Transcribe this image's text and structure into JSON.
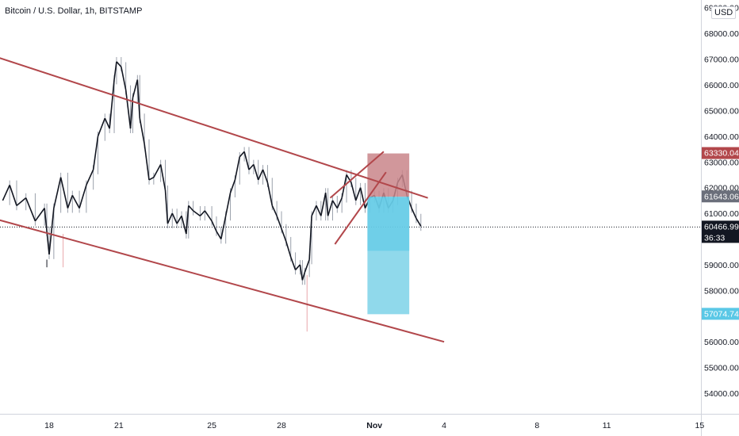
{
  "header": {
    "title": "Bitcoin / U.S. Dollar, 1h, BITSTAMP",
    "currency": "USD"
  },
  "chart_data": {
    "type": "candlestick",
    "title": "Bitcoin / U.S. Dollar, 1h, BITSTAMP",
    "ylabel": "",
    "xlabel": "",
    "ylim": [
      53200,
      69300
    ],
    "y_ticks": [
      {
        "value": 54000,
        "label": "54000.00"
      },
      {
        "value": 55000,
        "label": "55000.00"
      },
      {
        "value": 56000,
        "label": "56000.00"
      },
      {
        "value": 57000,
        "label": "57000.00"
      },
      {
        "value": 58000,
        "label": "58000.00"
      },
      {
        "value": 59000,
        "label": "59000.00"
      },
      {
        "value": 61000,
        "label": "61000.00"
      },
      {
        "value": 62000,
        "label": "62000.00"
      },
      {
        "value": 63000,
        "label": "63000.00"
      },
      {
        "value": 64000,
        "label": "64000.00"
      },
      {
        "value": 65000,
        "label": "65000.00"
      },
      {
        "value": 66000,
        "label": "66000.00"
      },
      {
        "value": 67000,
        "label": "67000.00"
      },
      {
        "value": 68000,
        "label": "68000.00"
      },
      {
        "value": 69000,
        "label": "69000.00"
      }
    ],
    "x_ticks": [
      {
        "day": 18,
        "label": "18",
        "bold": false
      },
      {
        "day": 21,
        "label": "21",
        "bold": false
      },
      {
        "day": 25,
        "label": "25",
        "bold": false
      },
      {
        "day": 28,
        "label": "28",
        "bold": false
      },
      {
        "day": 32,
        "label": "Nov",
        "bold": true
      },
      {
        "day": 35,
        "label": "4",
        "bold": false
      },
      {
        "day": 39,
        "label": "8",
        "bold": false
      },
      {
        "day": 42,
        "label": "11",
        "bold": false
      },
      {
        "day": 46,
        "label": "15",
        "bold": false
      }
    ],
    "price_points": [
      [
        16.0,
        61500
      ],
      [
        16.3,
        62100
      ],
      [
        16.6,
        61300
      ],
      [
        17.0,
        61600
      ],
      [
        17.4,
        60700
      ],
      [
        17.8,
        61200
      ],
      [
        17.9,
        60300
      ],
      [
        18.0,
        59400
      ],
      [
        18.2,
        61200
      ],
      [
        18.5,
        62400
      ],
      [
        18.8,
        61200
      ],
      [
        19.0,
        61700
      ],
      [
        19.3,
        61200
      ],
      [
        19.6,
        62100
      ],
      [
        19.9,
        62700
      ],
      [
        20.1,
        64000
      ],
      [
        20.4,
        64700
      ],
      [
        20.6,
        64300
      ],
      [
        20.8,
        66200
      ],
      [
        20.9,
        66900
      ],
      [
        21.1,
        66700
      ],
      [
        21.3,
        65800
      ],
      [
        21.5,
        64300
      ],
      [
        21.6,
        65500
      ],
      [
        21.8,
        66200
      ],
      [
        21.9,
        64700
      ],
      [
        22.1,
        63700
      ],
      [
        22.3,
        62300
      ],
      [
        22.5,
        62400
      ],
      [
        22.8,
        62900
      ],
      [
        23.0,
        61900
      ],
      [
        23.1,
        60600
      ],
      [
        23.3,
        61000
      ],
      [
        23.5,
        60600
      ],
      [
        23.7,
        60900
      ],
      [
        23.9,
        60200
      ],
      [
        24.0,
        61300
      ],
      [
        24.2,
        61100
      ],
      [
        24.5,
        60900
      ],
      [
        24.7,
        61100
      ],
      [
        25.0,
        60700
      ],
      [
        25.2,
        60300
      ],
      [
        25.4,
        60000
      ],
      [
        25.6,
        60900
      ],
      [
        25.8,
        61800
      ],
      [
        26.0,
        62300
      ],
      [
        26.2,
        63200
      ],
      [
        26.4,
        63400
      ],
      [
        26.6,
        62700
      ],
      [
        26.8,
        62900
      ],
      [
        27.0,
        62300
      ],
      [
        27.2,
        62700
      ],
      [
        27.4,
        62200
      ],
      [
        27.6,
        61300
      ],
      [
        27.8,
        60900
      ],
      [
        28.0,
        60400
      ],
      [
        28.2,
        59900
      ],
      [
        28.4,
        59300
      ],
      [
        28.6,
        58800
      ],
      [
        28.8,
        59000
      ],
      [
        28.9,
        58400
      ],
      [
        29.0,
        58700
      ],
      [
        29.2,
        59200
      ],
      [
        29.3,
        60900
      ],
      [
        29.5,
        61300
      ],
      [
        29.7,
        60900
      ],
      [
        29.9,
        61800
      ],
      [
        30.0,
        60900
      ],
      [
        30.2,
        61500
      ],
      [
        30.4,
        61200
      ],
      [
        30.6,
        61600
      ],
      [
        30.8,
        62500
      ],
      [
        31.0,
        62200
      ],
      [
        31.2,
        61500
      ],
      [
        31.4,
        62000
      ],
      [
        31.6,
        61200
      ],
      [
        31.8,
        61600
      ],
      [
        32.0,
        61700
      ],
      [
        32.2,
        61200
      ],
      [
        32.4,
        61800
      ],
      [
        32.6,
        61200
      ],
      [
        32.8,
        61500
      ],
      [
        33.0,
        62200
      ],
      [
        33.2,
        62500
      ],
      [
        33.4,
        61700
      ],
      [
        33.6,
        61200
      ],
      [
        33.8,
        60800
      ],
      [
        34.0,
        60500
      ]
    ],
    "channel_upper": {
      "start": [
        15.0,
        67300
      ],
      "end": [
        34.3,
        61600
      ]
    },
    "channel_lower": {
      "start": [
        14.8,
        61000
      ],
      "end": [
        35.0,
        56000
      ]
    },
    "wedge_lower": {
      "start": [
        30.3,
        59800
      ],
      "end": [
        32.5,
        62600
      ]
    },
    "wedge_upper": {
      "start": [
        30.1,
        61600
      ],
      "end": [
        32.4,
        63400
      ]
    },
    "position": {
      "x_start": 31.7,
      "x_end": 33.5,
      "entry": 61643.06,
      "stop": 63330.04,
      "target": 57074.74,
      "current": 60466.99
    },
    "price_badges": [
      {
        "value": 63330.04,
        "label": "63330.04",
        "color": "#b2474b"
      },
      {
        "value": 61643.06,
        "label": "61643.06",
        "color": "#6b6f7b"
      },
      {
        "value": 60466.99,
        "label": "60466.99",
        "sublabel": "36:33",
        "color": "#131722"
      },
      {
        "value": 57074.74,
        "label": "57074.74",
        "color": "#5ac8e6"
      }
    ],
    "colors": {
      "candles_up": "#131722",
      "channel": "#b2474b",
      "stop_zone": "#c9858a",
      "target_zone": "#7cd2e8",
      "target_zone_dark": "#5ac8e6"
    },
    "grid": false
  }
}
